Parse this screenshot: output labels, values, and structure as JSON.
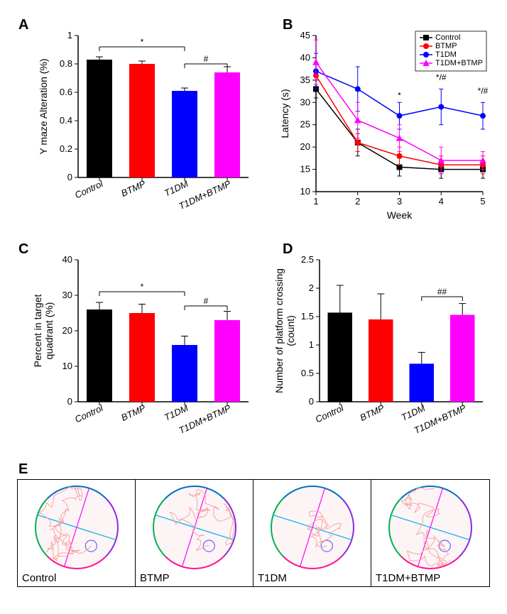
{
  "labels": {
    "A": "A",
    "B": "B",
    "C": "C",
    "D": "D",
    "E": "E"
  },
  "groups": [
    "Control",
    "BTMP",
    "T1DM",
    "T1DM+BTMP"
  ],
  "colors": {
    "Control": "#000000",
    "BTMP": "#ff0000",
    "T1DM": "#0000ff",
    "T1DM+BTMP": "#ff00ff",
    "axis": "#000000",
    "bg": "#ffffff"
  },
  "panelA": {
    "type": "bar",
    "ylabel": "Y maze Alteration (%)",
    "ylim": [
      0.0,
      1.0
    ],
    "ytick_step": 0.2,
    "bars": [
      {
        "cat": "Control",
        "value": 0.83,
        "err": 0.02,
        "color": "#000000"
      },
      {
        "cat": "BTMP",
        "value": 0.8,
        "err": 0.02,
        "color": "#ff0000"
      },
      {
        "cat": "T1DM",
        "value": 0.61,
        "err": 0.02,
        "color": "#0000ff"
      },
      {
        "cat": "T1DM+BTMP",
        "value": 0.74,
        "err": 0.04,
        "color": "#ff00ff"
      }
    ],
    "sig": [
      {
        "from": 0,
        "to": 2,
        "label": "*",
        "y": 0.92
      },
      {
        "from": 2,
        "to": 3,
        "label": "#",
        "y": 0.8
      }
    ],
    "bar_width": 0.6,
    "label_fontsize": 14,
    "tick_fontsize": 13
  },
  "panelB": {
    "type": "line",
    "ylabel": "Latency (s)",
    "xlabel": "Week",
    "xlim": [
      1,
      5
    ],
    "ylim": [
      10,
      45
    ],
    "xtick_step": 1,
    "ytick_step": 5,
    "legend_items": [
      "Control",
      "BTMP",
      "T1DM",
      "T1DM+BTMP"
    ],
    "series": [
      {
        "name": "Control",
        "color": "#000000",
        "marker": "square",
        "x": [
          1,
          2,
          3,
          4,
          5
        ],
        "y": [
          33,
          21,
          15.5,
          15,
          15
        ],
        "err": [
          2,
          3,
          2,
          2,
          2
        ]
      },
      {
        "name": "BTMP",
        "color": "#ff0000",
        "marker": "circle",
        "x": [
          1,
          2,
          3,
          4,
          5
        ],
        "y": [
          36,
          21,
          18,
          16,
          16
        ],
        "err": [
          3,
          2,
          2,
          2,
          2
        ]
      },
      {
        "name": "T1DM",
        "color": "#0000ff",
        "marker": "circle",
        "x": [
          1,
          2,
          3,
          4,
          5
        ],
        "y": [
          37,
          33,
          27,
          29,
          27
        ],
        "err": [
          4,
          5,
          3,
          4,
          3
        ]
      },
      {
        "name": "T1DM+BTMP",
        "color": "#ff00ff",
        "marker": "triangle",
        "x": [
          1,
          2,
          3,
          4,
          5
        ],
        "y": [
          39,
          26,
          22,
          17,
          17
        ],
        "err": [
          5,
          4,
          3,
          3,
          2
        ]
      }
    ],
    "sig_points": [
      {
        "x": 3,
        "y": 30,
        "label": "*"
      },
      {
        "x": 4,
        "y": 34,
        "label": "*/#"
      },
      {
        "x": 5,
        "y": 31,
        "label": "*/#"
      }
    ],
    "label_fontsize": 14,
    "tick_fontsize": 13
  },
  "panelC": {
    "type": "bar",
    "ylabel": "Percent in target\nquadrant (%)",
    "ylim": [
      0,
      40
    ],
    "ytick_step": 10,
    "bars": [
      {
        "cat": "Control",
        "value": 26,
        "err": 2.0,
        "color": "#000000"
      },
      {
        "cat": "BTMP",
        "value": 25,
        "err": 2.5,
        "color": "#ff0000"
      },
      {
        "cat": "T1DM",
        "value": 16,
        "err": 2.5,
        "color": "#0000ff"
      },
      {
        "cat": "T1DM+BTMP",
        "value": 23,
        "err": 2.5,
        "color": "#ff00ff"
      }
    ],
    "sig": [
      {
        "from": 0,
        "to": 2,
        "label": "*",
        "y": 31
      },
      {
        "from": 2,
        "to": 3,
        "label": "#",
        "y": 27
      }
    ],
    "bar_width": 0.6
  },
  "panelD": {
    "type": "bar",
    "ylabel": "Number of platform crossing\n(count)",
    "ylim": [
      0.0,
      2.5
    ],
    "ytick_step": 0.5,
    "bars": [
      {
        "cat": "Control",
        "value": 1.57,
        "err": 0.48,
        "color": "#000000"
      },
      {
        "cat": "BTMP",
        "value": 1.45,
        "err": 0.45,
        "color": "#ff0000"
      },
      {
        "cat": "T1DM",
        "value": 0.67,
        "err": 0.2,
        "color": "#0000ff"
      },
      {
        "cat": "T1DM+BTMP",
        "value": 1.53,
        "err": 0.2,
        "color": "#ff00ff"
      }
    ],
    "sig": [
      {
        "from": 2,
        "to": 3,
        "label": "##",
        "y": 1.85
      }
    ],
    "bar_width": 0.6
  },
  "panelE": {
    "type": "maze-traces",
    "cells": [
      "Control",
      "BTMP",
      "T1DM",
      "T1DM+BTMP"
    ],
    "circle_border_colors": [
      "#8a2be2",
      "#ff1493",
      "#00b050",
      "#0070c0"
    ],
    "cross_colors": [
      "#ff00ff",
      "#00b0f0"
    ],
    "trace_color": "#f4a6a6",
    "platform_circle_color": "#6666ff",
    "bg": "#fdf5f5"
  }
}
